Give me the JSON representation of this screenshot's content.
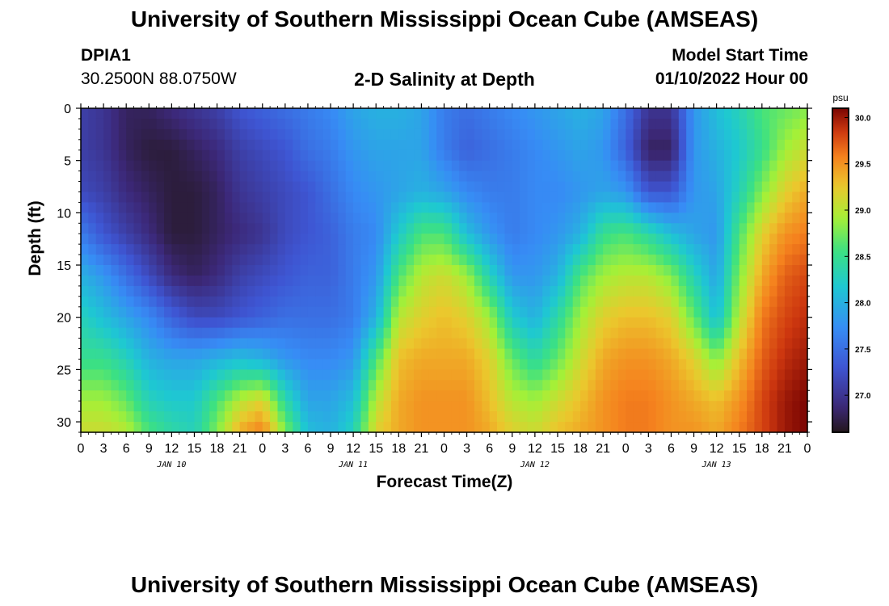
{
  "page": {
    "title_top": "University of Southern Mississippi Ocean Cube (AMSEAS)",
    "title_bottom": "University of Southern Mississippi Ocean Cube (AMSEAS)",
    "station_id": "DPIA1",
    "station_coords": "30.2500N  88.0750W",
    "model_start_label": "Model Start Time",
    "model_start_value": "01/10/2022 Hour 00"
  },
  "chart_data": {
    "type": "heatmap",
    "title": "2-D Salinity at Depth",
    "xlabel": "Forecast Time(Z)",
    "ylabel": "Depth (ft)",
    "x_range_hours": [
      0,
      96
    ],
    "x_tick_step_hours": 3,
    "x_tick_labels": [
      "0",
      "3",
      "6",
      "9",
      "12",
      "15",
      "18",
      "21",
      "0",
      "3",
      "6",
      "9",
      "12",
      "15",
      "18",
      "21",
      "0",
      "3",
      "6",
      "9",
      "12",
      "15",
      "18",
      "21",
      "0",
      "3",
      "6",
      "9",
      "12",
      "15",
      "18",
      "21",
      "0"
    ],
    "date_labels": [
      {
        "label": "JAN 10",
        "hour": 12
      },
      {
        "label": "JAN 11",
        "hour": 36
      },
      {
        "label": "JAN 12",
        "hour": 60
      },
      {
        "label": "JAN 13",
        "hour": 84
      }
    ],
    "y_range_ft": [
      0,
      31
    ],
    "y_ticks": [
      0,
      5,
      10,
      15,
      20,
      25,
      30
    ],
    "y_tick_labels": [
      "0",
      "5",
      "10",
      "15",
      "20",
      "25",
      "30"
    ],
    "colorbar": {
      "unit": "psu",
      "range": [
        26.6,
        30.1
      ],
      "ticks": [
        27.0,
        27.5,
        28.0,
        28.5,
        29.0,
        29.5,
        30.0
      ],
      "tick_labels": [
        "27.0",
        "27.5",
        "28.0",
        "28.5",
        "29.0",
        "29.5",
        "30.0"
      ]
    },
    "depth_levels_ft": [
      0,
      4,
      8,
      12,
      16,
      20,
      24,
      28,
      31
    ],
    "time_hours": [
      0,
      3,
      6,
      9,
      12,
      15,
      18,
      21,
      24,
      27,
      30,
      33,
      36,
      39,
      42,
      45,
      48,
      51,
      54,
      57,
      60,
      63,
      66,
      69,
      72,
      75,
      78,
      81,
      84,
      87,
      90,
      93,
      96
    ],
    "salinity_psu": [
      [
        27.1,
        27.1,
        27.2,
        27.6,
        28.0,
        28.3,
        28.5,
        28.9,
        29.1
      ],
      [
        27.0,
        27.0,
        27.1,
        27.3,
        27.8,
        28.1,
        28.5,
        28.9,
        29.1
      ],
      [
        26.8,
        26.8,
        26.9,
        27.1,
        27.5,
        27.9,
        28.3,
        28.7,
        29.0
      ],
      [
        26.8,
        26.7,
        26.8,
        26.9,
        27.2,
        27.7,
        28.0,
        28.3,
        28.6
      ],
      [
        26.9,
        26.7,
        26.7,
        26.7,
        26.9,
        27.4,
        27.9,
        28.2,
        28.4
      ],
      [
        27.0,
        26.8,
        26.7,
        26.7,
        26.8,
        27.2,
        27.9,
        28.2,
        28.3
      ],
      [
        27.1,
        26.9,
        26.8,
        26.8,
        26.9,
        27.2,
        28.0,
        28.6,
        28.8
      ],
      [
        27.3,
        27.1,
        27.0,
        26.9,
        27.1,
        27.3,
        28.1,
        29.0,
        29.4
      ],
      [
        27.4,
        27.2,
        27.1,
        27.0,
        27.2,
        27.4,
        28.0,
        29.2,
        29.6
      ],
      [
        27.5,
        27.3,
        27.2,
        27.2,
        27.3,
        27.5,
        27.8,
        28.4,
        28.8
      ],
      [
        27.6,
        27.5,
        27.3,
        27.3,
        27.4,
        27.5,
        27.7,
        27.9,
        28.1
      ],
      [
        27.7,
        27.6,
        27.5,
        27.4,
        27.4,
        27.5,
        27.7,
        27.9,
        28.0
      ],
      [
        27.9,
        27.8,
        27.7,
        27.6,
        27.6,
        27.6,
        27.8,
        28.1,
        28.3
      ],
      [
        28.0,
        27.9,
        27.8,
        27.7,
        27.8,
        28.0,
        28.6,
        29.0,
        29.2
      ],
      [
        28.0,
        27.9,
        27.9,
        28.2,
        28.6,
        29.0,
        29.3,
        29.4,
        29.4
      ],
      [
        27.9,
        27.9,
        28.0,
        28.6,
        29.0,
        29.2,
        29.4,
        29.5,
        29.5
      ],
      [
        27.6,
        27.6,
        27.9,
        28.6,
        29.1,
        29.3,
        29.4,
        29.5,
        29.5
      ],
      [
        27.5,
        27.4,
        27.7,
        28.1,
        28.9,
        29.2,
        29.4,
        29.5,
        29.5
      ],
      [
        27.6,
        27.5,
        27.6,
        27.8,
        28.3,
        28.9,
        29.2,
        29.3,
        29.4
      ],
      [
        27.7,
        27.6,
        27.6,
        27.6,
        27.8,
        28.2,
        28.7,
        29.0,
        29.2
      ],
      [
        27.8,
        27.7,
        27.7,
        27.7,
        27.8,
        28.0,
        28.4,
        28.9,
        29.1
      ],
      [
        27.9,
        27.8,
        27.7,
        27.8,
        28.0,
        28.4,
        28.7,
        29.1,
        29.3
      ],
      [
        28.0,
        27.9,
        27.8,
        28.0,
        28.6,
        28.9,
        29.1,
        29.3,
        29.4
      ],
      [
        27.9,
        27.8,
        27.9,
        28.5,
        28.9,
        29.2,
        29.4,
        29.5,
        29.5
      ],
      [
        27.5,
        27.4,
        27.8,
        28.6,
        29.0,
        29.3,
        29.5,
        29.6,
        29.6
      ],
      [
        27.0,
        26.8,
        27.3,
        28.4,
        29.0,
        29.3,
        29.5,
        29.6,
        29.6
      ],
      [
        27.0,
        26.8,
        27.3,
        28.1,
        28.8,
        29.2,
        29.4,
        29.5,
        29.5
      ],
      [
        27.8,
        27.8,
        27.8,
        27.9,
        28.3,
        28.7,
        29.2,
        29.4,
        29.5
      ],
      [
        28.1,
        28.0,
        27.9,
        27.8,
        27.9,
        28.1,
        28.8,
        29.3,
        29.4
      ],
      [
        28.3,
        28.2,
        28.3,
        28.6,
        28.8,
        29.0,
        29.3,
        29.5,
        29.6
      ],
      [
        28.6,
        28.5,
        28.8,
        29.2,
        29.4,
        29.6,
        29.7,
        29.8,
        29.8
      ],
      [
        28.7,
        28.9,
        29.2,
        29.5,
        29.7,
        29.8,
        29.9,
        30.0,
        30.0
      ],
      [
        28.8,
        29.1,
        29.4,
        29.6,
        29.8,
        29.9,
        30.0,
        30.1,
        30.1
      ]
    ]
  }
}
